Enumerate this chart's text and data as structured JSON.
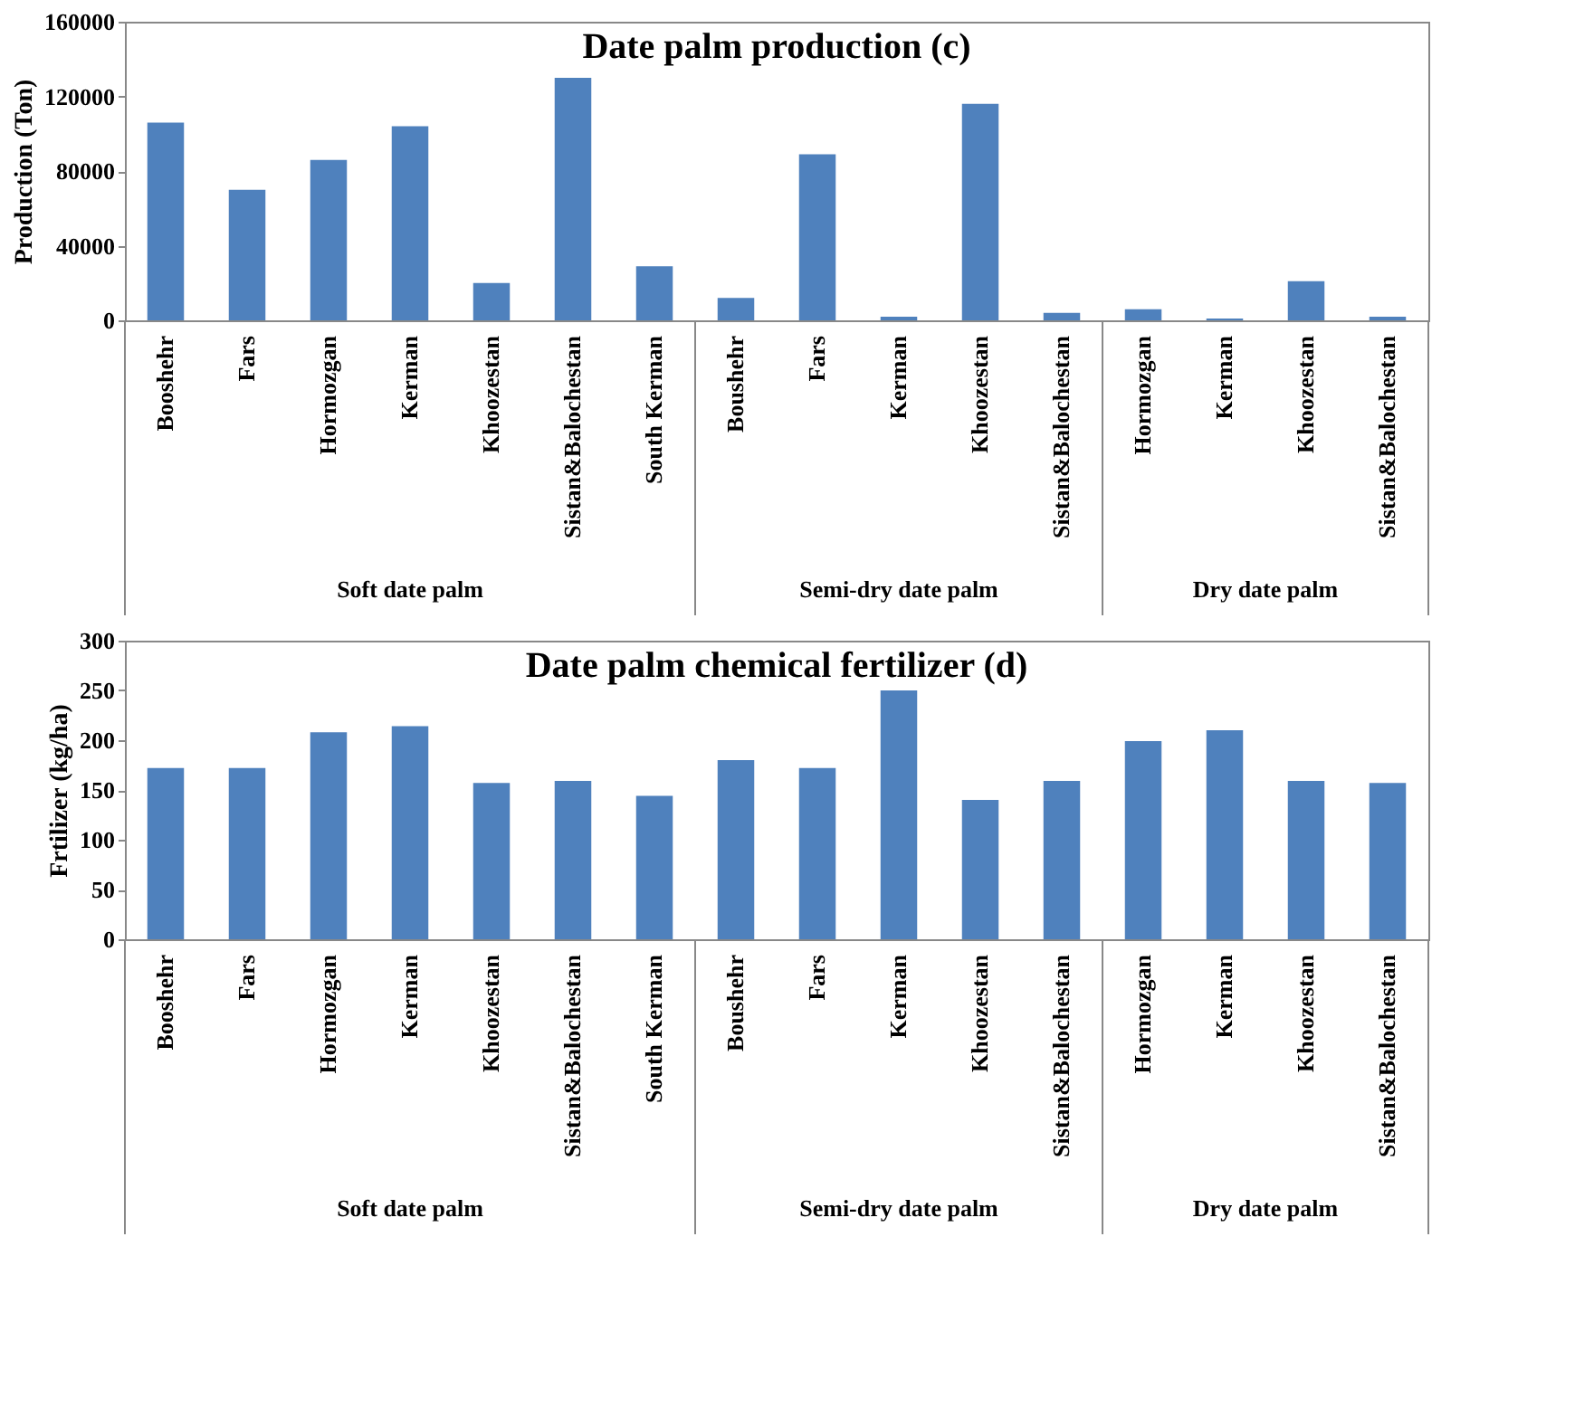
{
  "chart_data": [
    {
      "type": "bar",
      "title": "Date palm  production       (c)",
      "ylabel": "Production (Ton)",
      "categories": [
        "Booshehr",
        "Fars",
        "Hormozgan",
        "Kerman",
        "Khoozestan",
        "Sistan&Balochestan",
        "South Kerman",
        "Boushehr",
        "Fars",
        "Kerman",
        "Khoozestan",
        "Sistan&Balochestan",
        "Hormozgan",
        "Kerman",
        "Khoozestan",
        "Sistan&Balochestan"
      ],
      "values": [
        106000,
        70000,
        86000,
        104000,
        20000,
        130000,
        29000,
        12000,
        89000,
        2000,
        116000,
        4000,
        6000,
        1000,
        21000,
        2000
      ],
      "color": "#4f81bd",
      "ylim": [
        0,
        160000
      ],
      "yticks": [
        0,
        40000,
        80000,
        120000,
        160000
      ],
      "grid": false,
      "annotations": [
        "Soft date palm",
        "Semi-dry date palm",
        "Dry date palm"
      ]
    },
    {
      "type": "bar",
      "title": "Date palm  chemical fertilizer  (d)",
      "ylabel": "Frtilizer (kg/ha)",
      "categories": [
        "Booshehr",
        "Fars",
        "Hormozgan",
        "Kerman",
        "Khoozestan",
        "Sistan&Balochestan",
        "South Kerman",
        "Boushehr",
        "Fars",
        "Kerman",
        "Khoozestan",
        "Sistan&Balochestan",
        "Hormozgan",
        "Kerman",
        "Khoozestan",
        "Sistan&Balochestan"
      ],
      "values": [
        172,
        172,
        208,
        214,
        157,
        159,
        144,
        180,
        172,
        250,
        140,
        159,
        199,
        210,
        159,
        157
      ],
      "color": "#4f81bd",
      "ylim": [
        0,
        300
      ],
      "yticks": [
        0,
        50,
        100,
        150,
        200,
        250,
        300
      ],
      "grid": false,
      "annotations": [
        "Soft date palm",
        "Semi-dry date palm",
        "Dry date palm"
      ]
    }
  ]
}
